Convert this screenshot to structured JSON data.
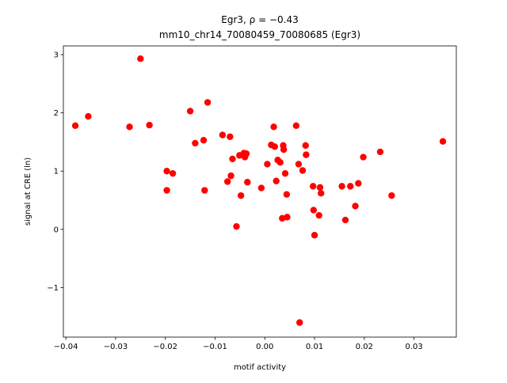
{
  "chart_data": {
    "type": "scatter",
    "title_line1": "Egr3, ρ = −0.43",
    "title_line2": "mm10_chr14_70080459_70080685 (Egr3)",
    "xlabel": "motif activity",
    "ylabel": "signal at CRE (ln)",
    "xlim": [
      -0.0405,
      0.0385
    ],
    "ylim": [
      -1.85,
      3.15
    ],
    "xticks": [
      -0.04,
      -0.03,
      -0.02,
      -0.01,
      0.0,
      0.01,
      0.02,
      0.03
    ],
    "xtick_labels": [
      "−0.04",
      "−0.03",
      "−0.02",
      "−0.01",
      "0.00",
      "0.01",
      "0.02",
      "0.03"
    ],
    "yticks": [
      -1,
      0,
      1,
      2,
      3
    ],
    "ytick_labels": [
      "−1",
      "0",
      "1",
      "2",
      "3"
    ],
    "grid": false,
    "marker_color": "#ff0000",
    "points": [
      {
        "x": -0.0381,
        "y": 1.78
      },
      {
        "x": -0.0355,
        "y": 1.94
      },
      {
        "x": -0.0272,
        "y": 1.76
      },
      {
        "x": -0.025,
        "y": 2.93
      },
      {
        "x": -0.0232,
        "y": 1.79
      },
      {
        "x": -0.0197,
        "y": 1.0
      },
      {
        "x": -0.0197,
        "y": 0.67
      },
      {
        "x": -0.0185,
        "y": 0.96
      },
      {
        "x": -0.015,
        "y": 2.03
      },
      {
        "x": -0.014,
        "y": 1.48
      },
      {
        "x": -0.0123,
        "y": 1.53
      },
      {
        "x": -0.0121,
        "y": 0.67
      },
      {
        "x": -0.0115,
        "y": 2.18
      },
      {
        "x": -0.0085,
        "y": 1.62
      },
      {
        "x": -0.0075,
        "y": 0.82
      },
      {
        "x": -0.007,
        "y": 1.59
      },
      {
        "x": -0.0068,
        "y": 0.92
      },
      {
        "x": -0.0065,
        "y": 1.21
      },
      {
        "x": -0.0057,
        "y": 0.05
      },
      {
        "x": -0.0051,
        "y": 1.27
      },
      {
        "x": -0.0048,
        "y": 0.58
      },
      {
        "x": -0.0042,
        "y": 1.31
      },
      {
        "x": -0.004,
        "y": 1.24
      },
      {
        "x": -0.0037,
        "y": 1.3
      },
      {
        "x": -0.0035,
        "y": 0.81
      },
      {
        "x": -0.0007,
        "y": 0.71
      },
      {
        "x": 0.0005,
        "y": 1.12
      },
      {
        "x": 0.0013,
        "y": 1.45
      },
      {
        "x": 0.0018,
        "y": 1.76
      },
      {
        "x": 0.002,
        "y": 1.42
      },
      {
        "x": 0.0023,
        "y": 0.83
      },
      {
        "x": 0.0026,
        "y": 1.19
      },
      {
        "x": 0.0031,
        "y": 1.15
      },
      {
        "x": 0.0035,
        "y": 0.19
      },
      {
        "x": 0.0037,
        "y": 1.44
      },
      {
        "x": 0.0038,
        "y": 1.37
      },
      {
        "x": 0.0041,
        "y": 0.96
      },
      {
        "x": 0.0044,
        "y": 0.6
      },
      {
        "x": 0.0045,
        "y": 0.21
      },
      {
        "x": 0.0063,
        "y": 1.78
      },
      {
        "x": 0.0068,
        "y": 1.12
      },
      {
        "x": 0.007,
        "y": -1.6
      },
      {
        "x": 0.0076,
        "y": 1.01
      },
      {
        "x": 0.0082,
        "y": 1.44
      },
      {
        "x": 0.0083,
        "y": 1.28
      },
      {
        "x": 0.0097,
        "y": 0.74
      },
      {
        "x": 0.0098,
        "y": 0.33
      },
      {
        "x": 0.01,
        "y": -0.1
      },
      {
        "x": 0.0109,
        "y": 0.24
      },
      {
        "x": 0.0111,
        "y": 0.72
      },
      {
        "x": 0.0113,
        "y": 0.62
      },
      {
        "x": 0.0155,
        "y": 0.74
      },
      {
        "x": 0.0162,
        "y": 0.16
      },
      {
        "x": 0.0172,
        "y": 0.74
      },
      {
        "x": 0.0182,
        "y": 0.4
      },
      {
        "x": 0.0188,
        "y": 0.79
      },
      {
        "x": 0.0198,
        "y": 1.24
      },
      {
        "x": 0.0232,
        "y": 1.33
      },
      {
        "x": 0.0255,
        "y": 0.58
      },
      {
        "x": 0.0358,
        "y": 1.51
      }
    ]
  }
}
